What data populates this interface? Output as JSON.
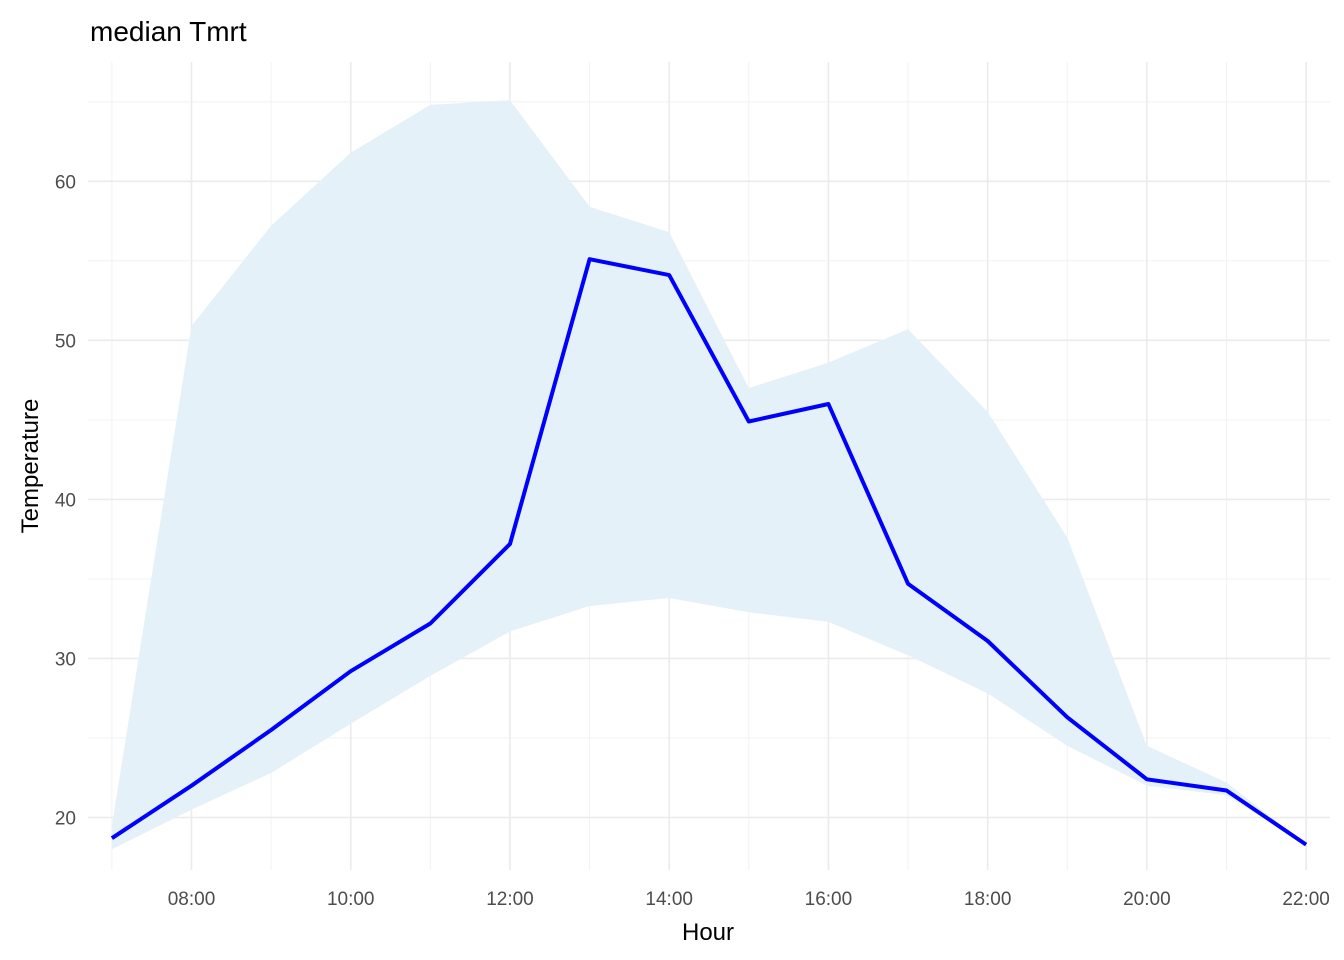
{
  "chart_data": {
    "type": "area",
    "title": "median Tmrt",
    "xlabel": "Hour",
    "ylabel": "Temperature",
    "x": [
      7,
      8,
      9,
      10,
      11,
      12,
      13,
      14,
      15,
      16,
      17,
      18,
      19,
      20,
      21,
      22
    ],
    "x_tick_values": [
      8,
      10,
      12,
      14,
      16,
      18,
      20,
      22
    ],
    "x_tick_labels": [
      "08:00",
      "10:00",
      "12:00",
      "14:00",
      "16:00",
      "18:00",
      "20:00",
      "22:00"
    ],
    "xlim": [
      6.7,
      22.3
    ],
    "y_tick_values": [
      20,
      30,
      40,
      50,
      60
    ],
    "y_tick_labels": [
      "20",
      "30",
      "40",
      "50",
      "60"
    ],
    "ylim": [
      16.7,
      67.5
    ],
    "grid": true,
    "series": [
      {
        "values": [
          18.7,
          22.0,
          25.5,
          29.2,
          32.2,
          37.2,
          55.1,
          54.1,
          44.9,
          46.0,
          34.7,
          31.1,
          26.3,
          22.4,
          21.7,
          18.3
        ],
        "lower": [
          18.0,
          20.5,
          22.8,
          25.9,
          28.9,
          31.7,
          33.3,
          33.8,
          32.9,
          32.3,
          30.2,
          27.8,
          24.5,
          22.0,
          21.4,
          18.3
        ],
        "upper": [
          19.5,
          50.9,
          57.2,
          61.8,
          64.8,
          65.1,
          58.4,
          56.8,
          47.0,
          48.6,
          50.7,
          45.5,
          37.6,
          24.5,
          22.2,
          18.3
        ],
        "line_color": "#0000ff",
        "band_color": "#e5f1f8"
      }
    ]
  }
}
